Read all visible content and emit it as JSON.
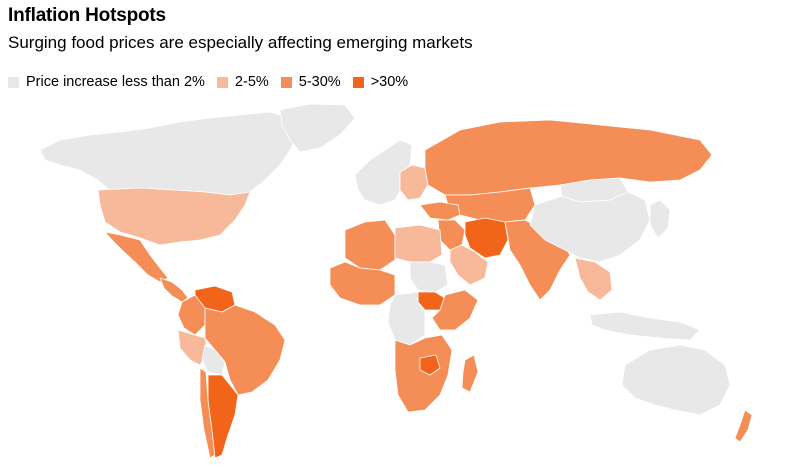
{
  "title": "Inflation Hotspots",
  "subtitle": "Surging food prices are especially affecting emerging markets",
  "legend": [
    {
      "label": "Price increase less than 2%",
      "color": "#e8e8e8"
    },
    {
      "label": "2-5%",
      "color": "#f8b99a"
    },
    {
      "label": "5-30%",
      "color": "#f58d56"
    },
    {
      "label": ">30%",
      "color": "#f26419"
    }
  ],
  "regions": {
    "north_america": "lt2",
    "usa": "r2_5",
    "mexico": "r5_30",
    "central_america": "r5_30",
    "venezuela": "gt30",
    "colombia": "r5_30",
    "brazil": "r5_30",
    "peru": "r2_5",
    "bolivia": "lt2",
    "argentina": "gt30",
    "chile": "r5_30",
    "greenland": "lt2",
    "europe_west": "lt2",
    "europe_east": "r2_5",
    "russia": "r5_30",
    "turkey": "r5_30",
    "middle_east": "r5_30",
    "iran": "gt30",
    "saudi_arabia": "r2_5",
    "north_africa": "r5_30",
    "egypt_libya": "r2_5",
    "west_africa": "r5_30",
    "central_africa": "lt2",
    "sudan": "lt2",
    "south_sudan": "gt30",
    "east_africa": "r5_30",
    "southern_africa": "r5_30",
    "zimbabwe": "gt30",
    "madagascar": "r5_30",
    "kazakhstan_central_asia": "r5_30",
    "south_asia": "r5_30",
    "china": "lt2",
    "mongolia": "lt2",
    "southeast_asia": "r2_5",
    "indonesia": "lt2",
    "japan_korea": "lt2",
    "australia": "lt2",
    "new_zealand": "r5_30"
  }
}
